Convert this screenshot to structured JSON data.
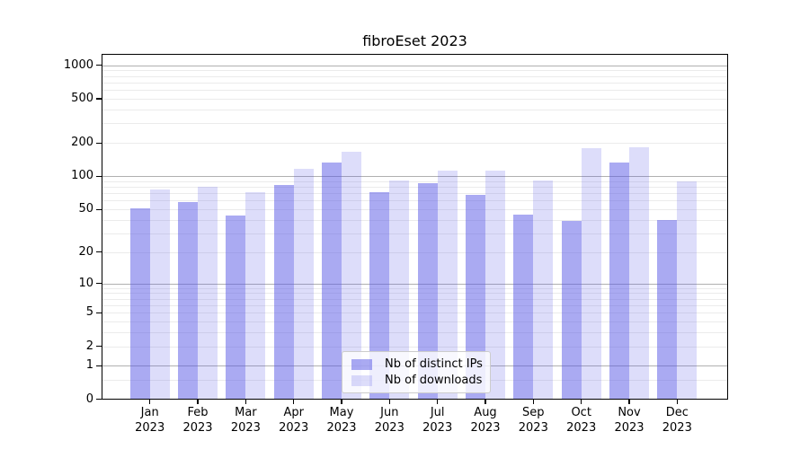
{
  "chart_data": {
    "type": "bar",
    "title": "fibroEset 2023",
    "categories": [
      "Jan 2023",
      "Feb 2023",
      "Mar 2023",
      "Apr 2023",
      "May 2023",
      "Jun 2023",
      "Jul 2023",
      "Aug 2023",
      "Sep 2023",
      "Oct 2023",
      "Nov 2023",
      "Dec 2023"
    ],
    "series": [
      {
        "name": "Nb of distinct IPs",
        "color": "#5555e6",
        "alpha": 0.5,
        "values": [
          51,
          58,
          44,
          83,
          132,
          71,
          86,
          68,
          45,
          39,
          133,
          40
        ]
      },
      {
        "name": "Nb of downloads",
        "color": "#5555e6",
        "alpha": 0.2,
        "values": [
          76,
          80,
          72,
          116,
          165,
          92,
          113,
          113,
          92,
          178,
          184,
          90
        ]
      }
    ],
    "yscale": "log1p",
    "ylim": [
      0,
      1243
    ],
    "yticks": [
      1000,
      500,
      200,
      100,
      50,
      20,
      10,
      5,
      2,
      1,
      0
    ],
    "grid": true,
    "legend_position": "lower center"
  },
  "colors": {
    "bar_base": "#5555e6",
    "major_grid": "#b0b0b0",
    "minor_grid": "#ebebeb",
    "axis": "#000000",
    "legend_border": "#cccccc",
    "background": "#ffffff"
  }
}
